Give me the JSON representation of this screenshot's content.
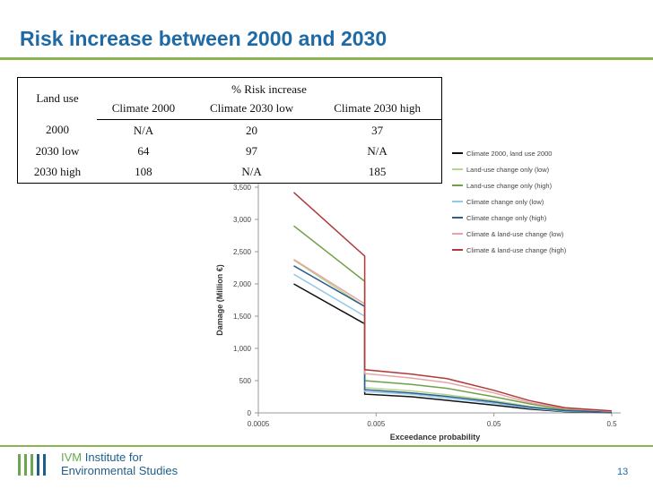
{
  "slide": {
    "title": "Risk increase between 2000 and 2030",
    "page_number": "13"
  },
  "table": {
    "land_use_header": "Land use",
    "group_header": "% Risk increase",
    "columns": [
      "Climate 2000",
      "Climate 2030 low",
      "Climate 2030 high"
    ],
    "rows": [
      {
        "label": "2000",
        "values": [
          "N/A",
          "20",
          "37"
        ]
      },
      {
        "label": "2030 low",
        "values": [
          "64",
          "97",
          "N/A"
        ]
      },
      {
        "label": "2030 high",
        "values": [
          "108",
          "N/A",
          "185"
        ]
      }
    ]
  },
  "logo": {
    "line1_prefix": "IVM",
    "line1_rest": " Institute for",
    "line2": "Environmental Studies"
  },
  "chart_data": {
    "type": "line",
    "title": "",
    "xlabel": "Exceedance probability",
    "ylabel": "Damage (Million €)",
    "x_scale": "log",
    "x_ticks": [
      "0.0005",
      "0.005",
      "0.05",
      "0.5"
    ],
    "y_ticks": [
      "0",
      "500",
      "1,000",
      "1,500",
      "2,000",
      "2,500",
      "3,000",
      "3,500"
    ],
    "ylim": [
      0,
      3500
    ],
    "legend_position": "right",
    "series": [
      {
        "name": "Climate 2000, land use 2000",
        "color": "#111111",
        "points": [
          [
            0.001,
            2000
          ],
          [
            0.004,
            1380
          ],
          [
            0.004,
            290
          ],
          [
            0.01,
            250
          ],
          [
            0.02,
            195
          ],
          [
            0.05,
            120
          ],
          [
            0.1,
            60
          ],
          [
            0.2,
            20
          ],
          [
            0.5,
            5
          ]
        ]
      },
      {
        "name": "Land-use change only (low)",
        "color": "#b7d68a",
        "points": [
          [
            0.001,
            2370
          ],
          [
            0.004,
            1650
          ],
          [
            0.004,
            390
          ],
          [
            0.01,
            340
          ],
          [
            0.02,
            280
          ],
          [
            0.05,
            190
          ],
          [
            0.1,
            100
          ],
          [
            0.2,
            40
          ],
          [
            0.5,
            15
          ]
        ]
      },
      {
        "name": "Land-use change only (high)",
        "color": "#70a048",
        "points": [
          [
            0.001,
            2900
          ],
          [
            0.004,
            2040
          ],
          [
            0.004,
            500
          ],
          [
            0.01,
            440
          ],
          [
            0.02,
            380
          ],
          [
            0.05,
            250
          ],
          [
            0.1,
            140
          ],
          [
            0.2,
            50
          ],
          [
            0.5,
            20
          ]
        ]
      },
      {
        "name": "Climate change only (low)",
        "color": "#93c8e8",
        "points": [
          [
            0.001,
            2150
          ],
          [
            0.004,
            1500
          ],
          [
            0.004,
            330
          ],
          [
            0.01,
            290
          ],
          [
            0.02,
            230
          ],
          [
            0.05,
            150
          ],
          [
            0.1,
            75
          ],
          [
            0.2,
            25
          ],
          [
            0.5,
            10
          ]
        ]
      },
      {
        "name": "Climate change only (high)",
        "color": "#2e5d8f",
        "points": [
          [
            0.001,
            2280
          ],
          [
            0.004,
            1650
          ],
          [
            0.004,
            360
          ],
          [
            0.01,
            310
          ],
          [
            0.02,
            255
          ],
          [
            0.05,
            170
          ],
          [
            0.1,
            90
          ],
          [
            0.2,
            35
          ],
          [
            0.5,
            10
          ]
        ]
      },
      {
        "name": "Climate & land-use change (low)",
        "color": "#e8a3a7",
        "points": [
          [
            0.001,
            2380
          ],
          [
            0.004,
            1690
          ],
          [
            0.004,
            610
          ],
          [
            0.01,
            540
          ],
          [
            0.02,
            470
          ],
          [
            0.05,
            310
          ],
          [
            0.1,
            160
          ],
          [
            0.2,
            70
          ],
          [
            0.5,
            25
          ]
        ]
      },
      {
        "name": "Climate & land-use change (high)",
        "color": "#b03a3a",
        "points": [
          [
            0.001,
            3420
          ],
          [
            0.004,
            2430
          ],
          [
            0.004,
            670
          ],
          [
            0.01,
            600
          ],
          [
            0.02,
            530
          ],
          [
            0.05,
            350
          ],
          [
            0.1,
            190
          ],
          [
            0.2,
            80
          ],
          [
            0.5,
            30
          ]
        ]
      }
    ]
  }
}
